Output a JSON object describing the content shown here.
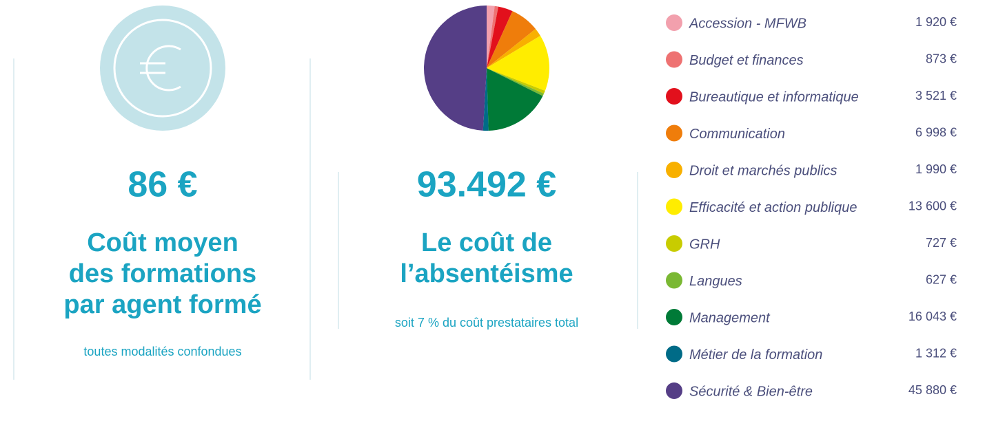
{
  "cards": [
    {
      "value": "86 €",
      "title_lines": [
        "Coût moyen",
        "des formations",
        "par agent formé"
      ],
      "note": "toutes modalités confondues"
    },
    {
      "value": "93.492 €",
      "title_lines": [
        "Le coût de",
        "l’absentéisme"
      ],
      "note": "soit 7 % du coût prestataires total"
    }
  ],
  "chart_data": {
    "type": "pie",
    "categories": [
      "Accession - MFWB",
      "Budget et finances",
      "Bureautique et informatique",
      "Communication",
      "Droit et marchés publics",
      "Efficacité et action publique",
      "GRH",
      "Langues",
      "Management",
      "Métier de la formation",
      "Sécurité & Bien-être"
    ],
    "values": [
      1920,
      873,
      3521,
      6998,
      1990,
      13600,
      727,
      627,
      16043,
      1312,
      45880
    ],
    "value_labels": [
      "1 920 €",
      "873 €",
      "3 521 €",
      "6 998 €",
      "1 990 €",
      "13 600 €",
      "727 €",
      "627 €",
      "16 043 €",
      "1 312 €",
      "45 880 €"
    ],
    "colors": [
      "#f2a0ad",
      "#ee7272",
      "#e2101c",
      "#ef7d0b",
      "#f8b000",
      "#ffed00",
      "#c8cc00",
      "#7ab833",
      "#007a37",
      "#006b87",
      "#553e86"
    ]
  }
}
